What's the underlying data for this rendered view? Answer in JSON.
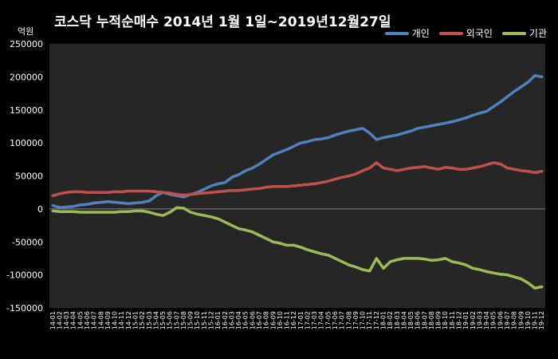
{
  "chart_data": {
    "type": "line",
    "title": "코스닥  누적순매수  2014년 1월 1일~2019년12월27일",
    "unit_label": "억원",
    "ylim": [
      -150000,
      250000
    ],
    "y_ticks": [
      "250000",
      "200000",
      "150000",
      "100000",
      "50000",
      "0",
      "-50000",
      "-100000",
      "-150000"
    ],
    "y_tick_values": [
      250000,
      200000,
      150000,
      100000,
      50000,
      0,
      -50000,
      -100000,
      -150000
    ],
    "grid": false,
    "legend_position": "top-right",
    "x_labels": [
      "14-01",
      "14-02",
      "14-03",
      "14-04",
      "14-05",
      "14-06",
      "14-07",
      "14-08",
      "14-09",
      "14-10",
      "14-11",
      "14-12",
      "15-01",
      "15-02",
      "15-03",
      "15-04",
      "15-05",
      "15-06",
      "15-07",
      "15-08",
      "15-09",
      "15-10",
      "15-11",
      "15-12",
      "16-01",
      "16-02",
      "16-03",
      "16-04",
      "16-05",
      "16-06",
      "16-07",
      "16-08",
      "16-09",
      "16-10",
      "16-11",
      "16-12",
      "17-01",
      "17-02",
      "17-03",
      "17-04",
      "17-05",
      "17-06",
      "17-07",
      "17-08",
      "17-09",
      "17-10",
      "17-11",
      "17-12",
      "18-01",
      "18-02",
      "18-03",
      "18-04",
      "18-05",
      "18-06",
      "18-07",
      "18-08",
      "18-09",
      "18-10",
      "18-11",
      "18-12",
      "19-01",
      "19-02",
      "19-03",
      "19-04",
      "19-05",
      "19-06",
      "19-07",
      "19-08",
      "19-09",
      "19-10",
      "19-11",
      "19-12"
    ],
    "series": [
      {
        "name": "개인",
        "color": "#4f81bd",
        "values": [
          5000,
          2000,
          3000,
          4000,
          6000,
          7000,
          9000,
          10000,
          11000,
          10000,
          9000,
          8000,
          9000,
          10000,
          12000,
          20000,
          25000,
          22000,
          20000,
          18000,
          22000,
          25000,
          30000,
          35000,
          38000,
          40000,
          48000,
          52000,
          58000,
          62000,
          68000,
          75000,
          82000,
          86000,
          90000,
          95000,
          100000,
          102000,
          105000,
          106000,
          108000,
          112000,
          115000,
          118000,
          120000,
          122000,
          115000,
          105000,
          108000,
          110000,
          112000,
          115000,
          118000,
          122000,
          124000,
          126000,
          128000,
          130000,
          132000,
          135000,
          138000,
          142000,
          145000,
          148000,
          155000,
          162000,
          170000,
          178000,
          185000,
          192000,
          202000,
          200000
        ]
      },
      {
        "name": "외국인",
        "color": "#c0504d",
        "values": [
          20000,
          23000,
          25000,
          26000,
          26000,
          25000,
          25000,
          25000,
          25000,
          26000,
          26000,
          27000,
          27000,
          27000,
          27000,
          26000,
          25000,
          24000,
          22000,
          21000,
          22000,
          23000,
          24000,
          25000,
          26000,
          27000,
          28000,
          28000,
          29000,
          30000,
          31000,
          33000,
          34000,
          34000,
          34000,
          35000,
          36000,
          37000,
          38000,
          40000,
          42000,
          45000,
          48000,
          50000,
          53000,
          58000,
          62000,
          70000,
          62000,
          60000,
          58000,
          60000,
          62000,
          63000,
          64000,
          62000,
          60000,
          63000,
          62000,
          60000,
          60000,
          62000,
          64000,
          67000,
          70000,
          68000,
          62000,
          60000,
          58000,
          57000,
          55000,
          57000
        ]
      },
      {
        "name": "기관",
        "color": "#9bbb59",
        "values": [
          -3000,
          -4000,
          -4000,
          -4000,
          -5000,
          -5000,
          -5000,
          -5000,
          -5000,
          -5000,
          -4000,
          -4000,
          -3000,
          -3000,
          -5000,
          -8000,
          -10000,
          -5000,
          2000,
          1000,
          -5000,
          -8000,
          -10000,
          -12000,
          -15000,
          -20000,
          -25000,
          -30000,
          -32000,
          -35000,
          -40000,
          -45000,
          -50000,
          -52000,
          -55000,
          -55000,
          -58000,
          -62000,
          -65000,
          -68000,
          -70000,
          -75000,
          -80000,
          -85000,
          -88000,
          -92000,
          -94000,
          -75000,
          -90000,
          -80000,
          -77000,
          -75000,
          -75000,
          -75000,
          -76000,
          -78000,
          -77000,
          -75000,
          -80000,
          -82000,
          -85000,
          -90000,
          -92000,
          -95000,
          -97000,
          -99000,
          -100000,
          -103000,
          -106000,
          -112000,
          -120000,
          -118000
        ]
      }
    ]
  }
}
